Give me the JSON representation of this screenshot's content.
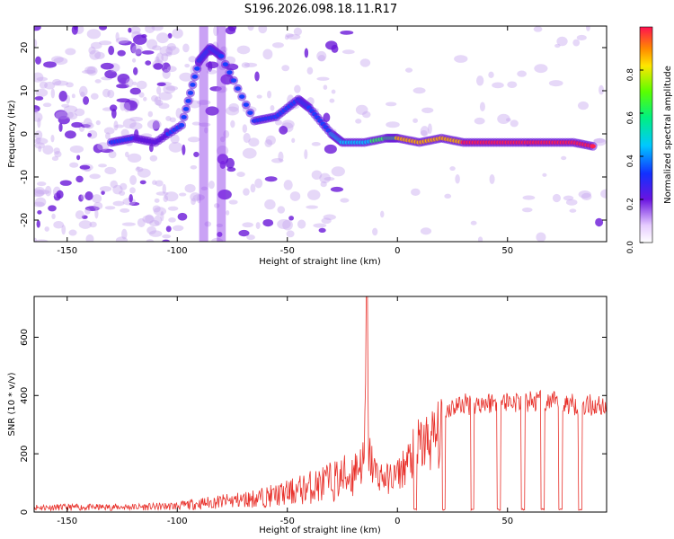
{
  "figure_title": "S196.2026.098.18.11.R17",
  "colors": {
    "snr_line": "#e8302a",
    "track_core": "#e8306a",
    "background_blob": "#7a2ae0"
  },
  "chart_data": [
    {
      "type": "heatmap",
      "name": "spectrogram",
      "title": "S196.2026.098.18.11.R17",
      "xlabel": "Height of straight line (km)",
      "ylabel": "Frequency (Hz)",
      "xlim": [
        -165,
        95
      ],
      "ylim": [
        -25,
        25
      ],
      "xticks": [
        -150,
        -100,
        -50,
        0,
        50
      ],
      "yticks": [
        -20,
        -10,
        0,
        10,
        20
      ],
      "colorbar": {
        "label": "Normalized spectral amplitude",
        "range": [
          0,
          1
        ],
        "ticks": [
          0.0,
          0.2,
          0.4,
          0.6,
          0.8
        ],
        "tick_labels": [
          "0.0",
          "0.2",
          "0.4",
          "0.6",
          "0.8"
        ]
      },
      "ridge": {
        "x": [
          -130,
          -120,
          -110,
          -98,
          -90,
          -85,
          -80,
          -65,
          -55,
          -45,
          -40,
          -30,
          -25,
          -15,
          -5,
          0,
          10,
          20,
          30,
          40,
          50,
          60,
          70,
          80,
          90
        ],
        "freq_hz": [
          -2,
          -1,
          -2,
          2,
          17,
          20,
          18,
          3,
          4,
          8,
          6,
          0,
          -2,
          -2,
          -1,
          -1,
          -2,
          -1,
          -2,
          -2,
          -2,
          -2,
          -2,
          -2,
          -3
        ],
        "amplitude": [
          0.35,
          0.3,
          0.25,
          0.35,
          0.4,
          0.35,
          0.3,
          0.3,
          0.35,
          0.3,
          0.4,
          0.45,
          0.5,
          0.55,
          0.7,
          0.75,
          0.8,
          0.8,
          0.85,
          0.9,
          0.9,
          0.9,
          0.9,
          0.85,
          0.85
        ]
      }
    },
    {
      "type": "line",
      "name": "snr",
      "title": "",
      "xlabel": "Height of straight line (km)",
      "ylabel": "SNR (10 * v/v)",
      "xlim": [
        -165,
        95
      ],
      "ylim": [
        0,
        740
      ],
      "xticks": [
        -150,
        -100,
        -50,
        0,
        50
      ],
      "yticks": [
        0,
        200,
        400,
        600
      ],
      "series": [
        {
          "name": "SNR",
          "envelope_x": [
            -165,
            -140,
            -110,
            -100,
            -90,
            -80,
            -70,
            -60,
            -50,
            -40,
            -30,
            -20,
            -15,
            -14,
            -13,
            -10,
            -5,
            0,
            5,
            10,
            15,
            20,
            25,
            30,
            40,
            50,
            60,
            70,
            80,
            90,
            95
          ],
          "envelope_y": [
            25,
            25,
            28,
            32,
            45,
            55,
            65,
            80,
            100,
            130,
            160,
            200,
            230,
            740,
            260,
            180,
            150,
            170,
            230,
            300,
            330,
            360,
            380,
            390,
            395,
            400,
            400,
            395,
            390,
            385,
            385
          ],
          "dropouts_x": [
            8,
            21,
            34,
            46,
            57,
            66,
            74,
            83
          ]
        }
      ]
    }
  ]
}
